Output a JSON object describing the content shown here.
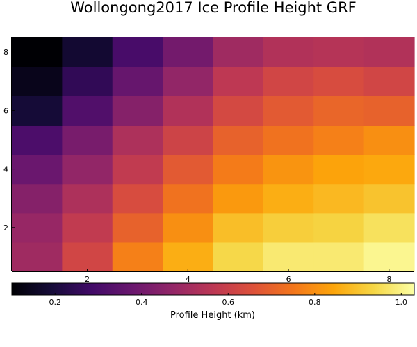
{
  "chart_data": {
    "type": "heatmap",
    "title": "Wollongong2017 Ice Profile Height GRF",
    "xlabel": "",
    "ylabel": "",
    "x_ticks": [
      2,
      4,
      6,
      8
    ],
    "y_ticks": [
      2,
      4,
      6,
      8
    ],
    "xlim": [
      0.5,
      8.5
    ],
    "ylim": [
      0.5,
      8.5
    ],
    "grid": false,
    "colormap": "inferno",
    "colorbar": {
      "label": "Profile Height (km)",
      "range": [
        0.1,
        1.03
      ],
      "ticks": [
        0.2,
        0.4,
        0.6,
        0.8,
        1.0
      ],
      "tick_labels": [
        "0.2",
        "0.4",
        "0.6",
        "0.8",
        "1.0"
      ]
    },
    "rows_y": [
      1,
      2,
      3,
      4,
      5,
      6,
      7,
      8
    ],
    "cols_x": [
      1,
      2,
      3,
      4,
      5,
      6,
      7,
      8
    ],
    "values": [
      [
        0.5,
        0.62,
        0.77,
        0.86,
        0.94,
        0.98,
        0.98,
        1.01
      ],
      [
        0.48,
        0.58,
        0.7,
        0.8,
        0.89,
        0.92,
        0.93,
        0.96
      ],
      [
        0.44,
        0.53,
        0.64,
        0.74,
        0.82,
        0.86,
        0.88,
        0.9
      ],
      [
        0.38,
        0.47,
        0.58,
        0.68,
        0.76,
        0.81,
        0.84,
        0.85
      ],
      [
        0.31,
        0.41,
        0.53,
        0.61,
        0.7,
        0.74,
        0.77,
        0.8
      ],
      [
        0.19,
        0.32,
        0.44,
        0.54,
        0.63,
        0.68,
        0.71,
        0.7
      ],
      [
        0.14,
        0.25,
        0.37,
        0.47,
        0.57,
        0.62,
        0.64,
        0.62
      ],
      [
        0.1,
        0.18,
        0.3,
        0.4,
        0.5,
        0.54,
        0.55,
        0.54
      ]
    ]
  }
}
